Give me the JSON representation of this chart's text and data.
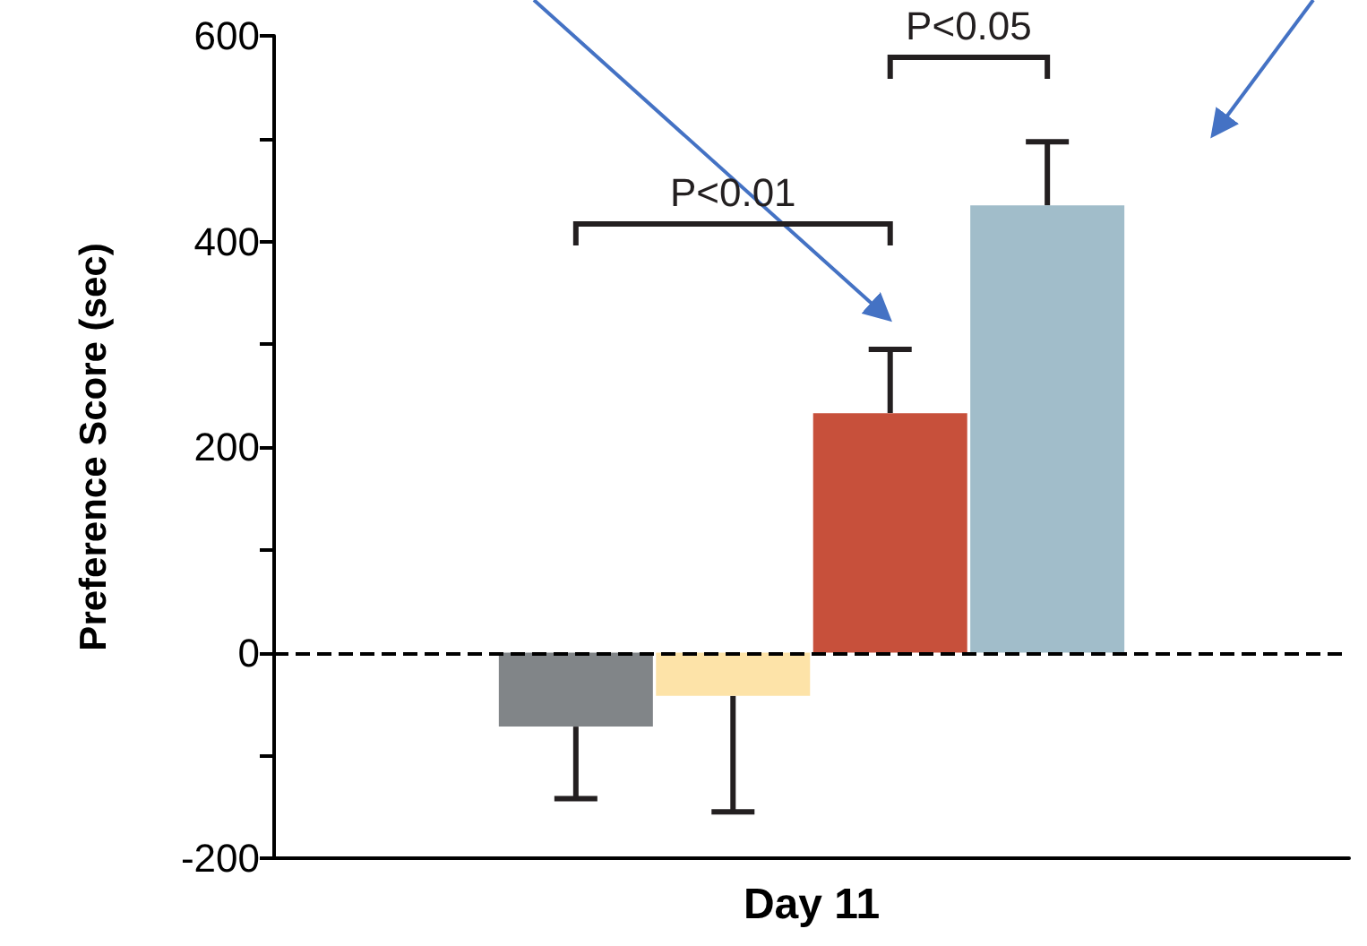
{
  "chart_data": {
    "type": "bar",
    "ylabel": "Preference Score (sec)",
    "categories": [
      "Day 11"
    ],
    "series": [
      {
        "color": "#818588",
        "values": [
          -72
        ],
        "errors": [
          [
            -142,
            -72
          ]
        ]
      },
      {
        "color": "#fde3a8",
        "values": [
          -42
        ],
        "errors": [
          [
            -155,
            -42
          ]
        ]
      },
      {
        "color": "#c7503b",
        "values": [
          233
        ],
        "errors": [
          [
            233,
            295
          ]
        ]
      },
      {
        "color": "#a1bdca",
        "values": [
          435
        ],
        "errors": [
          [
            435,
            497
          ]
        ]
      }
    ],
    "ylim": [
      -200,
      600
    ],
    "yticks": [
      -200,
      {
        "value": -100,
        "label": null
      },
      0,
      {
        "value": 100,
        "label": null
      },
      200,
      {
        "value": 300,
        "label": null
      },
      400,
      {
        "value": 500,
        "label": null
      },
      600
    ],
    "ref_lines": [
      {
        "axis": "y",
        "value": 0,
        "line_style": "dashed",
        "color": "#000000"
      }
    ],
    "annotations": [
      "P<0.01",
      "P<0.05"
    ]
  }
}
